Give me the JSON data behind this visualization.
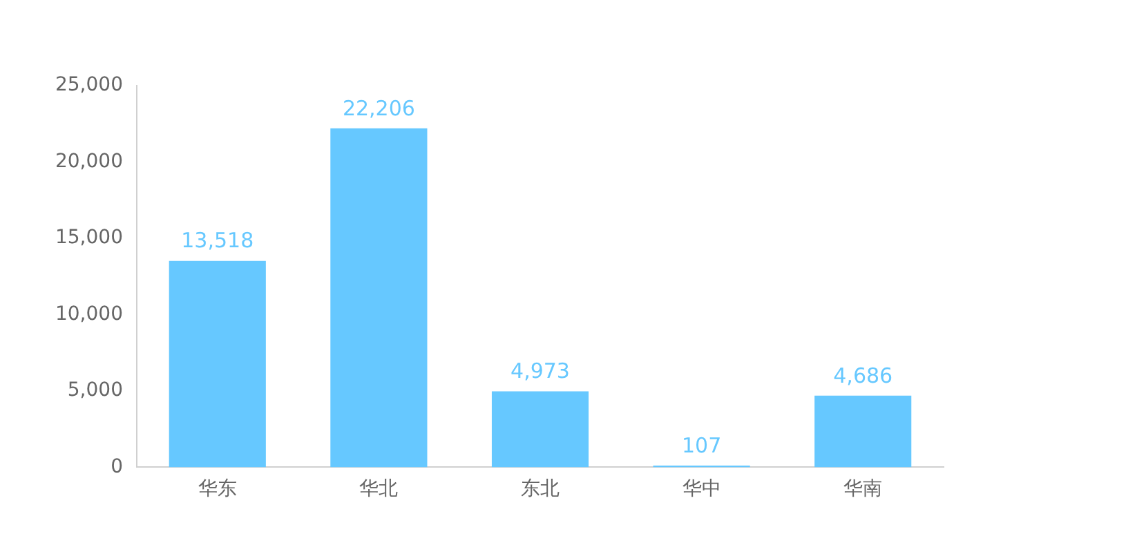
{
  "chart_data": {
    "type": "bar",
    "categories": [
      "华东",
      "华北",
      "东北",
      "华中",
      "华南"
    ],
    "values": [
      13518,
      22206,
      4973,
      107,
      4686
    ],
    "color": "#66c8ff",
    "ylim": [
      0,
      25000
    ],
    "yticks": [
      {
        "value": 0,
        "label": "0"
      },
      {
        "value": 5000,
        "label": "5,000"
      },
      {
        "value": 10000,
        "label": "10,000"
      },
      {
        "value": 15000,
        "label": "15,000"
      },
      {
        "value": 20000,
        "label": "20,000"
      },
      {
        "value": 25000,
        "label": "25,000"
      }
    ],
    "value_labels": [
      "13,518",
      "22,206",
      "4,973",
      "107",
      "4,686"
    ],
    "grid": false,
    "legend": false
  }
}
